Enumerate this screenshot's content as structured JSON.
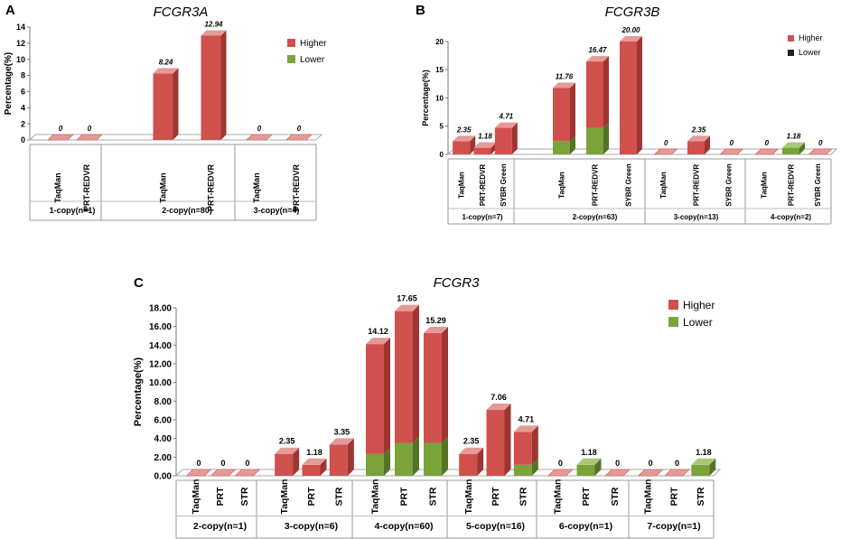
{
  "colors": {
    "higher": "#D0504D",
    "higher_dark": "#9E3532",
    "higher_top": "#E59A98",
    "lower": "#7AA33A",
    "lower_dark": "#557326",
    "lower_top": "#A8C878",
    "floor": "#FFFFFF",
    "floor_edge": "#A8A8A8",
    "text": "#000000"
  },
  "chart_data": [
    {
      "panel": "A",
      "type": "bar",
      "title": "FCGR3A",
      "ylabel": "Percentage(%)",
      "ylim": [
        0,
        14
      ],
      "yticks": [
        "0",
        "2",
        "4",
        "6",
        "8",
        "10",
        "12",
        "14"
      ],
      "legend": [
        "Higher",
        "Lower"
      ],
      "legend_position": "top-right",
      "groups": [
        {
          "label": "1-copy(n=1)",
          "bars": [
            {
              "method": "TaqMan",
              "higher": 0,
              "lower": 0,
              "label": "0"
            },
            {
              "method": "PRT-REDVR",
              "higher": 0,
              "lower": 0,
              "label": "0"
            }
          ]
        },
        {
          "label": "2-copy(n=80)",
          "bars": [
            {
              "method": "TaqMan",
              "higher": 8.24,
              "lower": 0,
              "label": "8.24"
            },
            {
              "method": "PRT-REDVR",
              "higher": 12.94,
              "lower": 0,
              "label": "12.94"
            }
          ]
        },
        {
          "label": "3-copy(n=4)",
          "bars": [
            {
              "method": "TaqMan",
              "higher": 0,
              "lower": 0,
              "label": "0"
            },
            {
              "method": "PRT-REDVR",
              "higher": 0,
              "lower": 0,
              "label": "0"
            }
          ]
        }
      ]
    },
    {
      "panel": "B",
      "type": "bar",
      "title": "FCGR3B",
      "ylabel": "Percentage(%)",
      "ylim": [
        0,
        20
      ],
      "yticks": [
        "0",
        "5",
        "10",
        "15",
        "20"
      ],
      "legend": [
        "Higher",
        "Lower"
      ],
      "legend_position": "top-right",
      "groups": [
        {
          "label": "1-copy(n=7)",
          "bars": [
            {
              "method": "TaqMan",
              "higher": 2.35,
              "lower": 0,
              "label": "2.35"
            },
            {
              "method": "PRT-REDVR",
              "higher": 1.18,
              "lower": 0,
              "label": "1.18"
            },
            {
              "method": "SYBR Green",
              "higher": 4.71,
              "lower": 0,
              "label": "4.71"
            }
          ]
        },
        {
          "label": "2-copy(n=63)",
          "bars": [
            {
              "method": "TaqMan",
              "higher": 9.41,
              "lower": 2.35,
              "label": "11.76"
            },
            {
              "method": "PRT-REDVR",
              "higher": 11.76,
              "lower": 4.71,
              "label": "16.47"
            },
            {
              "method": "SYBR Green",
              "higher": 20.0,
              "lower": 0,
              "label": "20.00"
            }
          ]
        },
        {
          "label": "3-copy(n=13)",
          "bars": [
            {
              "method": "TaqMan",
              "higher": 0,
              "lower": 0,
              "label": "0"
            },
            {
              "method": "PRT-REDVR",
              "higher": 2.35,
              "lower": 0,
              "label": "2.35"
            },
            {
              "method": "SYBR Green",
              "higher": 0,
              "lower": 0,
              "label": "0"
            }
          ]
        },
        {
          "label": "4-copy(n=2)",
          "bars": [
            {
              "method": "TaqMan",
              "higher": 0,
              "lower": 0,
              "label": "0"
            },
            {
              "method": "PRT-REDVR",
              "higher": 0,
              "lower": 1.18,
              "label": "1.18"
            },
            {
              "method": "SYBR Green",
              "higher": 0,
              "lower": 0,
              "label": "0"
            }
          ]
        }
      ]
    },
    {
      "panel": "C",
      "type": "bar",
      "title": "FCGR3",
      "ylabel": "Percentage(%)",
      "ylim": [
        0,
        18
      ],
      "yticks": [
        "0.00",
        "2.00",
        "4.00",
        "6.00",
        "8.00",
        "10.00",
        "12.00",
        "14.00",
        "16.00",
        "18.00"
      ],
      "legend": [
        "Higher",
        "Lower"
      ],
      "legend_position": "top-right",
      "groups": [
        {
          "label": "2-copy(n=1)",
          "bars": [
            {
              "method": "TaqMan",
              "higher": 0,
              "lower": 0,
              "label": "0"
            },
            {
              "method": "PRT",
              "higher": 0,
              "lower": 0,
              "label": "0"
            },
            {
              "method": "STR",
              "higher": 0,
              "lower": 0,
              "label": "0"
            }
          ]
        },
        {
          "label": "3-copy(n=6)",
          "bars": [
            {
              "method": "TaqMan",
              "higher": 2.35,
              "lower": 0,
              "label": "2.35"
            },
            {
              "method": "PRT",
              "higher": 1.18,
              "lower": 0,
              "label": "1.18"
            },
            {
              "method": "STR",
              "higher": 3.35,
              "lower": 0,
              "label": "3.35"
            }
          ]
        },
        {
          "label": "4-copy(n=60)",
          "bars": [
            {
              "method": "TaqMan",
              "higher": 11.77,
              "lower": 2.35,
              "label": "14.12"
            },
            {
              "method": "PRT",
              "higher": 14.12,
              "lower": 3.53,
              "label": "17.65"
            },
            {
              "method": "STR",
              "higher": 11.76,
              "lower": 3.53,
              "label": "15.29"
            }
          ]
        },
        {
          "label": "5-copy(n=16)",
          "bars": [
            {
              "method": "TaqMan",
              "higher": 2.35,
              "lower": 0,
              "label": "2.35"
            },
            {
              "method": "PRT",
              "higher": 7.06,
              "lower": 0,
              "label": "7.06"
            },
            {
              "method": "STR",
              "higher": 3.53,
              "lower": 1.18,
              "label": "4.71"
            }
          ]
        },
        {
          "label": "6-copy(n=1)",
          "bars": [
            {
              "method": "TaqMan",
              "higher": 0,
              "lower": 0,
              "label": "0"
            },
            {
              "method": "PRT",
              "higher": 0,
              "lower": 1.18,
              "label": "1.18"
            },
            {
              "method": "STR",
              "higher": 0,
              "lower": 0,
              "label": "0"
            }
          ]
        },
        {
          "label": "7-copy(n=1)",
          "bars": [
            {
              "method": "TaqMan",
              "higher": 0,
              "lower": 0,
              "label": "0"
            },
            {
              "method": "PRT",
              "higher": 0,
              "lower": 0,
              "label": "0"
            },
            {
              "method": "STR",
              "higher": 0,
              "lower": 1.18,
              "label": "1.18"
            }
          ]
        }
      ]
    }
  ]
}
